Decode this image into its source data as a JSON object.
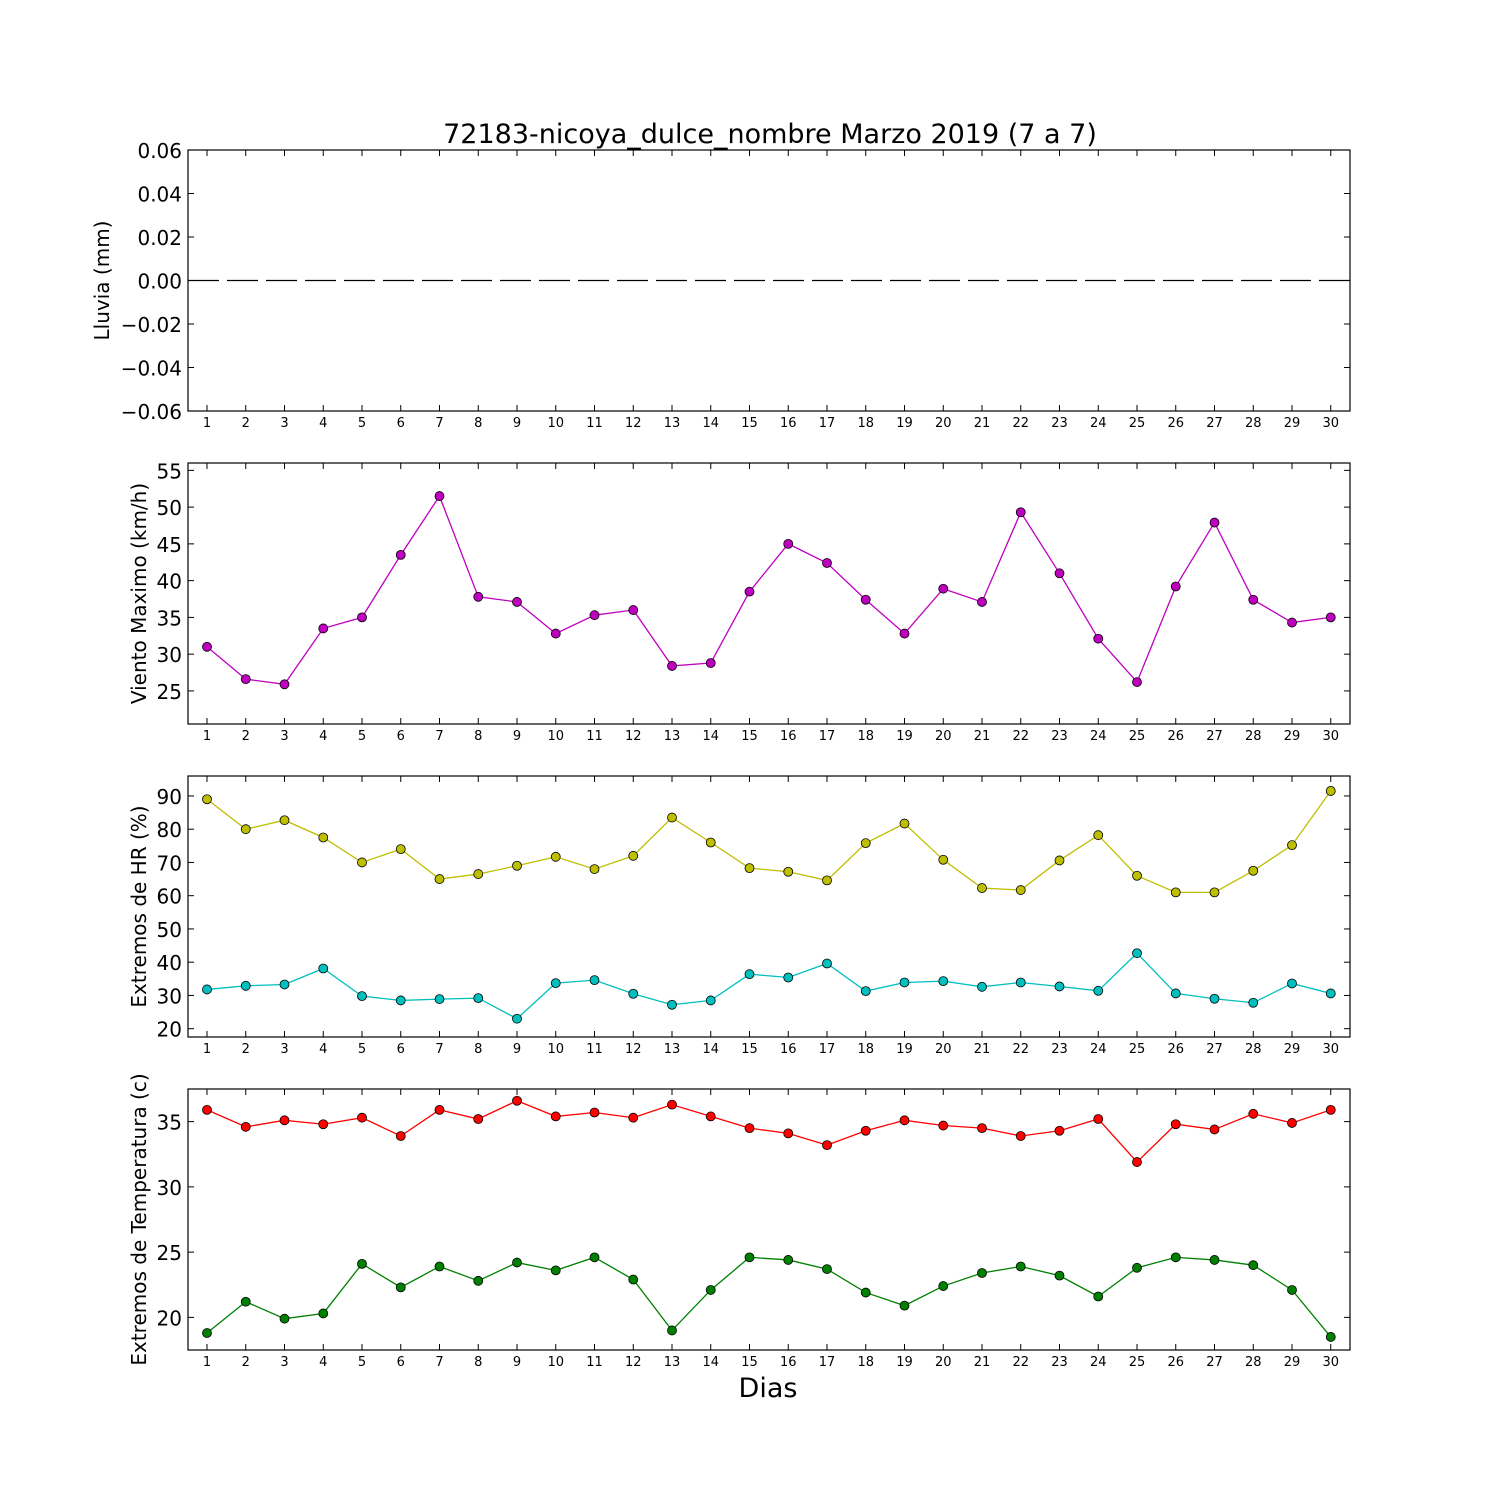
{
  "chart_data": [
    {
      "type": "line",
      "title": "72183-nicoya_dulce_nombre Marzo 2019  (7 a 7)",
      "ylabel": "Lluvia (mm)",
      "xlabel": "",
      "categories": [
        "1",
        "2",
        "3",
        "4",
        "5",
        "6",
        "7",
        "8",
        "9",
        "10",
        "11",
        "12",
        "13",
        "14",
        "15",
        "16",
        "17",
        "18",
        "19",
        "20",
        "21",
        "22",
        "23",
        "24",
        "25",
        "26",
        "27",
        "28",
        "29",
        "30"
      ],
      "ylim": [
        -0.06,
        0.06
      ],
      "yticks": [
        "0.06",
        "0.04",
        "0.02",
        "0.00",
        "−0.02",
        "−0.04",
        "−0.06"
      ],
      "ytick_values": [
        0.06,
        0.04,
        0.02,
        0.0,
        -0.02,
        -0.04,
        -0.06
      ],
      "series": [
        {
          "color": "#000000",
          "style": "dashed",
          "markers": false,
          "values": [
            0,
            0,
            0,
            0,
            0,
            0,
            0,
            0,
            0,
            0,
            0,
            0,
            0,
            0,
            0,
            0,
            0,
            0,
            0,
            0,
            0,
            0,
            0,
            0,
            0,
            0,
            0,
            0,
            0,
            0
          ]
        }
      ]
    },
    {
      "type": "line",
      "ylabel": "Viento Maximo (km/h)",
      "xlabel": "",
      "categories": [
        "1",
        "2",
        "3",
        "4",
        "5",
        "6",
        "7",
        "8",
        "9",
        "10",
        "11",
        "12",
        "13",
        "14",
        "15",
        "16",
        "17",
        "18",
        "19",
        "20",
        "21",
        "22",
        "23",
        "24",
        "25",
        "26",
        "27",
        "28",
        "29",
        "30"
      ],
      "ylim": [
        20.5,
        56
      ],
      "yticks": [
        "55",
        "50",
        "45",
        "40",
        "35",
        "30",
        "25"
      ],
      "ytick_values": [
        55,
        50,
        45,
        40,
        35,
        30,
        25
      ],
      "series": [
        {
          "color": "#bf00bf",
          "style": "solid",
          "markers": true,
          "values": [
            31.0,
            26.6,
            25.9,
            33.5,
            35.0,
            43.5,
            51.5,
            37.8,
            37.1,
            32.8,
            35.3,
            36.0,
            28.4,
            28.8,
            38.5,
            45.0,
            42.4,
            37.4,
            32.8,
            38.9,
            37.1,
            49.3,
            41.0,
            32.1,
            26.2,
            39.2,
            47.9,
            37.4,
            34.3,
            35.0
          ]
        }
      ]
    },
    {
      "type": "line",
      "ylabel": "Extremos de HR (%)",
      "xlabel": "",
      "categories": [
        "1",
        "2",
        "3",
        "4",
        "5",
        "6",
        "7",
        "8",
        "9",
        "10",
        "11",
        "12",
        "13",
        "14",
        "15",
        "16",
        "17",
        "18",
        "19",
        "20",
        "21",
        "22",
        "23",
        "24",
        "25",
        "26",
        "27",
        "28",
        "29",
        "30"
      ],
      "ylim": [
        17.5,
        96
      ],
      "yticks": [
        "90",
        "80",
        "70",
        "60",
        "50",
        "40",
        "30",
        "20"
      ],
      "ytick_values": [
        90,
        80,
        70,
        60,
        50,
        40,
        30,
        20
      ],
      "series": [
        {
          "color": "#bfbf00",
          "style": "solid",
          "markers": true,
          "values": [
            89.0,
            80.0,
            82.7,
            77.5,
            70.0,
            74.0,
            65.0,
            66.5,
            69.0,
            71.7,
            68.0,
            72.0,
            83.5,
            76.0,
            68.3,
            67.2,
            64.6,
            75.8,
            81.7,
            70.8,
            62.3,
            61.7,
            70.6,
            78.2,
            66.0,
            61.0,
            61.0,
            67.5,
            75.2,
            91.5
          ]
        },
        {
          "color": "#00bfbf",
          "style": "solid",
          "markers": true,
          "values": [
            31.8,
            32.9,
            33.3,
            38.1,
            29.8,
            28.5,
            28.9,
            29.2,
            23.0,
            33.7,
            34.6,
            30.5,
            27.2,
            28.5,
            36.4,
            35.4,
            39.6,
            31.3,
            33.9,
            34.3,
            32.6,
            33.9,
            32.7,
            31.4,
            42.7,
            30.6,
            29.0,
            27.8,
            33.6,
            30.6
          ]
        }
      ]
    },
    {
      "type": "line",
      "ylabel": "Extremos de Temperatura (c)",
      "xlabel": "Dias",
      "categories": [
        "1",
        "2",
        "3",
        "4",
        "5",
        "6",
        "7",
        "8",
        "9",
        "10",
        "11",
        "12",
        "13",
        "14",
        "15",
        "16",
        "17",
        "18",
        "19",
        "20",
        "21",
        "22",
        "23",
        "24",
        "25",
        "26",
        "27",
        "28",
        "29",
        "30"
      ],
      "ylim": [
        17.5,
        37.5
      ],
      "yticks": [
        "35",
        "30",
        "25",
        "20"
      ],
      "ytick_values": [
        35,
        30,
        25,
        20
      ],
      "series": [
        {
          "color": "#ff0000",
          "style": "solid",
          "markers": true,
          "values": [
            35.9,
            34.6,
            35.1,
            34.8,
            35.3,
            33.9,
            35.9,
            35.2,
            36.6,
            35.4,
            35.7,
            35.3,
            36.3,
            35.4,
            34.5,
            34.1,
            33.2,
            34.3,
            35.1,
            34.7,
            34.5,
            33.9,
            34.3,
            35.2,
            31.9,
            34.8,
            34.4,
            35.6,
            34.9,
            35.9
          ]
        },
        {
          "color": "#008000",
          "style": "solid",
          "markers": true,
          "values": [
            18.8,
            21.2,
            19.9,
            20.3,
            24.1,
            22.3,
            23.9,
            22.8,
            24.2,
            23.6,
            24.6,
            22.9,
            19.0,
            22.1,
            24.6,
            24.4,
            23.7,
            21.9,
            20.9,
            22.4,
            23.4,
            23.9,
            23.2,
            21.6,
            23.8,
            24.6,
            24.4,
            24.0,
            22.1,
            18.5
          ]
        }
      ]
    }
  ]
}
